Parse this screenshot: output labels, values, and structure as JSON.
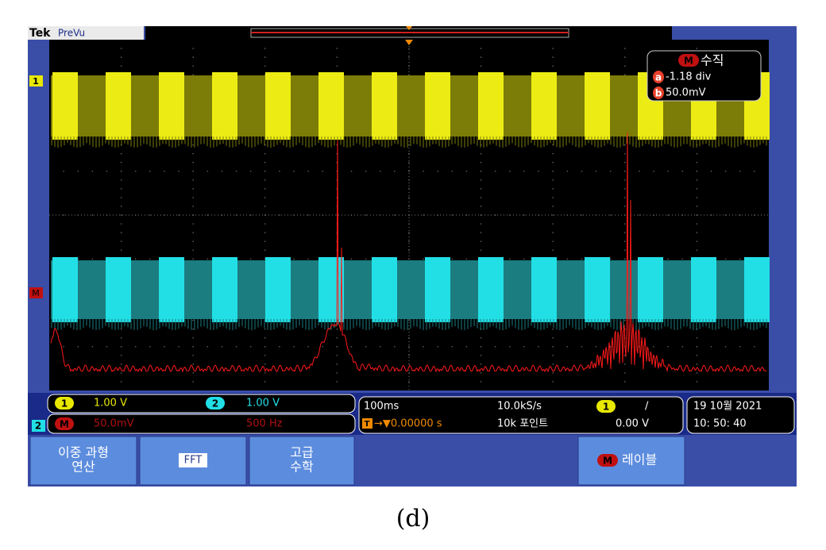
{
  "header": {
    "brand": "Tek",
    "mode": "PreVu"
  },
  "markers": {
    "ch1": "1",
    "math": "M",
    "ch2": "2"
  },
  "measurement": {
    "badge": "M",
    "title": "수직",
    "a_label": "a",
    "a_value": "-1.18 div",
    "b_label": "b",
    "b_value": "50.0mV"
  },
  "channels": [
    {
      "id": "1",
      "scale": "1.00 V"
    },
    {
      "id": "2",
      "scale": "1.00 V"
    }
  ],
  "math": {
    "id": "M",
    "scale": "50.0mV",
    "freq": "500 Hz"
  },
  "acquisition": {
    "timebase": "100ms",
    "sample_rate": "10.0kS/s",
    "trigger_source": "1",
    "trigger_slope": "/",
    "trigger_icon": "T",
    "position": "→▼0.00000 s",
    "record": "10k 포인트",
    "trigger_level": "0.00 V"
  },
  "datetime": {
    "date": "19 10월 2021",
    "time": "10: 50: 40"
  },
  "buttons": [
    {
      "lines": [
        "이중 과형",
        "연산"
      ]
    },
    {
      "lines": [
        "FFT"
      ]
    },
    {
      "lines": [
        "고급",
        "수학"
      ]
    },
    {
      "badge": "M",
      "lines": [
        "레이블"
      ]
    }
  ],
  "caption": "(d)"
}
